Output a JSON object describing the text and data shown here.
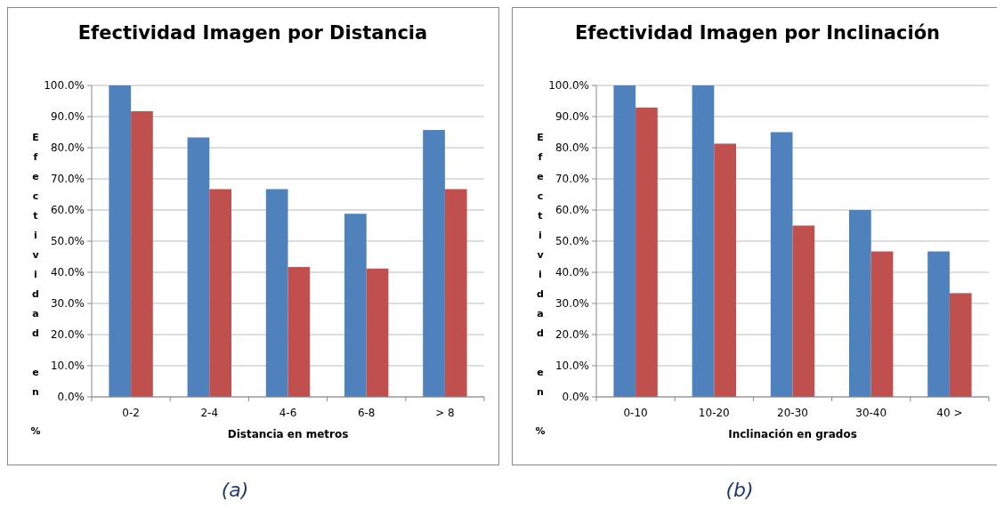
{
  "chart_data": [
    {
      "type": "bar",
      "title": "Efectividad Imagen por Distancia",
      "xlabel": "Distancia en metros",
      "ylabel": "Efectividad en %",
      "categories": [
        "0-2",
        "2-4",
        "4-6",
        "6-8",
        "> 8"
      ],
      "series": [
        {
          "color": "#4f81bd",
          "values": [
            100,
            83.3,
            66.7,
            58.8,
            85.7
          ]
        },
        {
          "color": "#c0504d",
          "values": [
            91.7,
            66.7,
            41.7,
            41.2,
            66.7
          ]
        }
      ],
      "ylim": [
        0,
        100
      ],
      "yticks": [
        {
          "value": 0,
          "label": "0.0%"
        },
        {
          "value": 10,
          "label": "10.0%"
        },
        {
          "value": 20,
          "label": "20.0%"
        },
        {
          "value": 30,
          "label": "30.0%"
        },
        {
          "value": 40,
          "label": "40.0%"
        },
        {
          "value": 50,
          "label": "50.0%"
        },
        {
          "value": 60,
          "label": "60.0%"
        },
        {
          "value": 70,
          "label": "70.0%"
        },
        {
          "value": 80,
          "label": "80.0%"
        },
        {
          "value": 90,
          "label": "90.0%"
        },
        {
          "value": 100,
          "label": "100.0%"
        }
      ],
      "grid": "y",
      "annotations": [
        "(a)"
      ]
    },
    {
      "type": "bar",
      "title": "Efectividad Imagen por Inclinación",
      "xlabel": "Inclinación en grados",
      "ylabel": "Efectividad en %",
      "categories": [
        "0-10",
        "10-20",
        "20-30",
        "30-40",
        "40 >"
      ],
      "series": [
        {
          "color": "#4f81bd",
          "values": [
            100,
            100,
            85,
            60,
            46.7
          ]
        },
        {
          "color": "#c0504d",
          "values": [
            92.9,
            81.3,
            55,
            46.7,
            33.3
          ]
        }
      ],
      "ylim": [
        0,
        100
      ],
      "yticks": [
        {
          "value": 0,
          "label": "0.0%"
        },
        {
          "value": 10,
          "label": "10.0%"
        },
        {
          "value": 20,
          "label": "20.0%"
        },
        {
          "value": 30,
          "label": "30.0%"
        },
        {
          "value": 40,
          "label": "40.0%"
        },
        {
          "value": 50,
          "label": "50.0%"
        },
        {
          "value": 60,
          "label": "60.0%"
        },
        {
          "value": 70,
          "label": "70.0%"
        },
        {
          "value": 80,
          "label": "80.0%"
        },
        {
          "value": 90,
          "label": "90.0%"
        },
        {
          "value": 100,
          "label": "100.0%"
        }
      ],
      "grid": "y",
      "annotations": [
        "(b)"
      ]
    }
  ]
}
